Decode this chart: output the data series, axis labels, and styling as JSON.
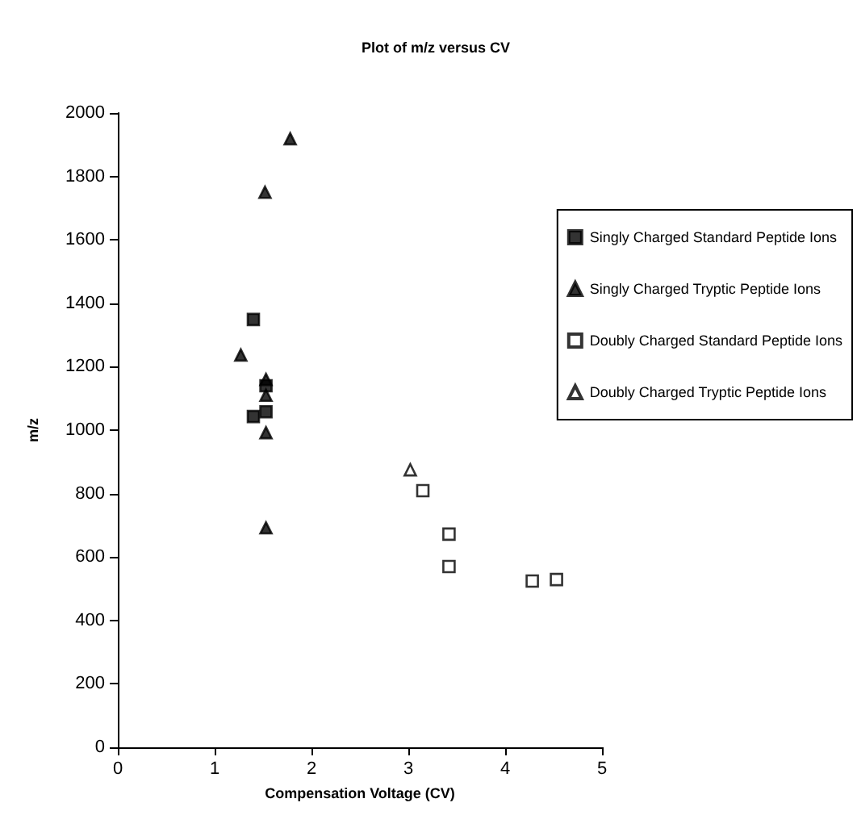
{
  "chart_data": {
    "type": "scatter",
    "title": "Plot of m/z versus CV",
    "xlabel": "Compensation Voltage (CV)",
    "ylabel": "m/z",
    "xlim": [
      0,
      5
    ],
    "xticks": [
      0,
      1,
      2,
      3,
      4,
      5
    ],
    "ylim": [
      0,
      2000
    ],
    "yticks": [
      0,
      200,
      400,
      600,
      800,
      1000,
      1200,
      1400,
      1600,
      1800,
      2000
    ],
    "grid": false,
    "legend": "right",
    "series": [
      {
        "name": "Singly Charged Standard Peptide Ions",
        "color": "#000000",
        "marker": "square",
        "x": [
          1.4,
          1.4,
          1.53,
          1.53
        ],
        "values": [
          1349,
          1043,
          1058,
          1140
        ]
      },
      {
        "name": "Singly Charged Tryptic Peptide Ions",
        "color": "#000000",
        "marker": "triangle",
        "x": [
          1.78,
          1.52,
          1.27,
          1.53,
          1.53,
          1.53,
          1.53
        ],
        "values": [
          1919,
          1750,
          1237,
          1160,
          1110,
          992,
          692
        ]
      },
      {
        "name": "Doubly Charged Standard Peptide Ions",
        "color": "#ffffff",
        "marker": "square",
        "x": [
          3.15,
          3.42,
          3.42,
          4.28,
          4.53
        ],
        "values": [
          809,
          672,
          570,
          524,
          529
        ]
      },
      {
        "name": "Doubly Charged Tryptic Peptide Ions",
        "color": "#ffffff",
        "marker": "triangle",
        "x": [
          3.02
        ],
        "values": [
          875
        ]
      }
    ]
  }
}
